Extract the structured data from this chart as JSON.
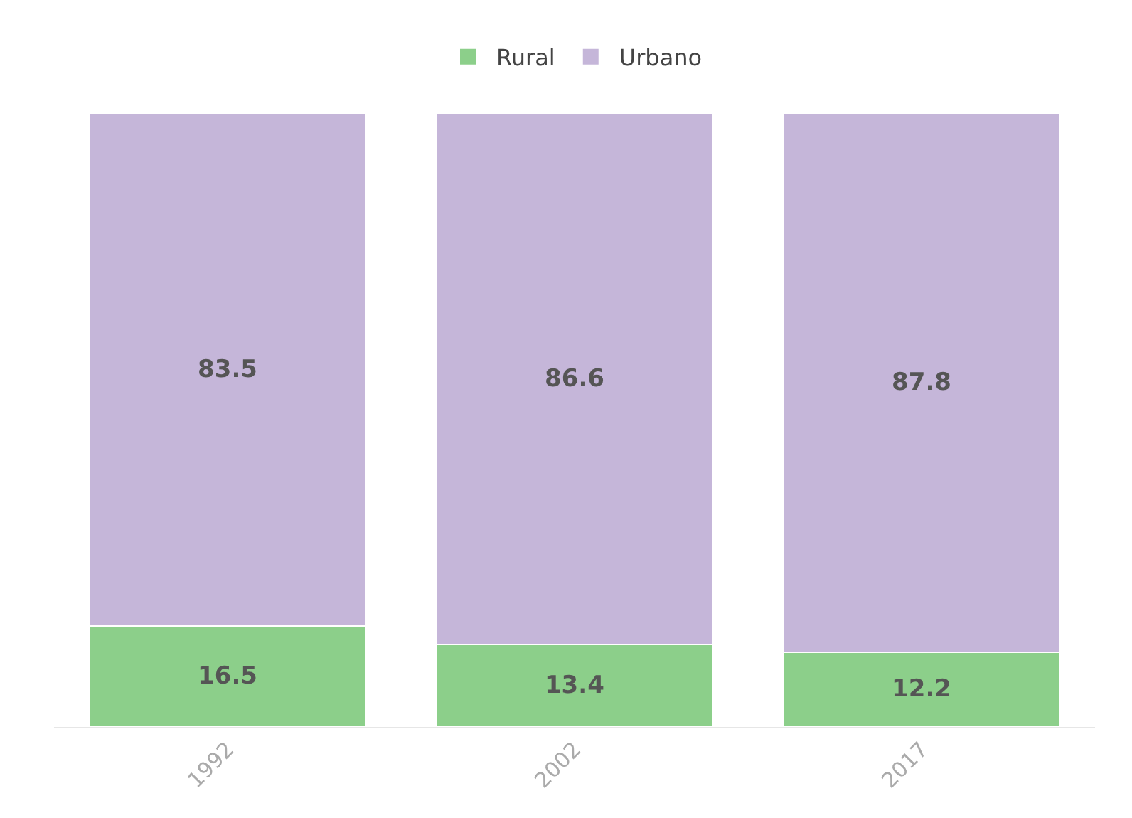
{
  "chart_data": {
    "type": "bar",
    "stacked": true,
    "categories": [
      "1992",
      "2002",
      "2017"
    ],
    "series": [
      {
        "name": "Rural",
        "color": "#8ccf8a",
        "values": [
          16.5,
          13.4,
          12.2
        ]
      },
      {
        "name": "Urbano",
        "color": "#c5b6d9",
        "values": [
          83.5,
          86.6,
          87.8
        ]
      }
    ],
    "data_labels": true,
    "legend": "top",
    "grid": false,
    "tick_labels": "x"
  }
}
